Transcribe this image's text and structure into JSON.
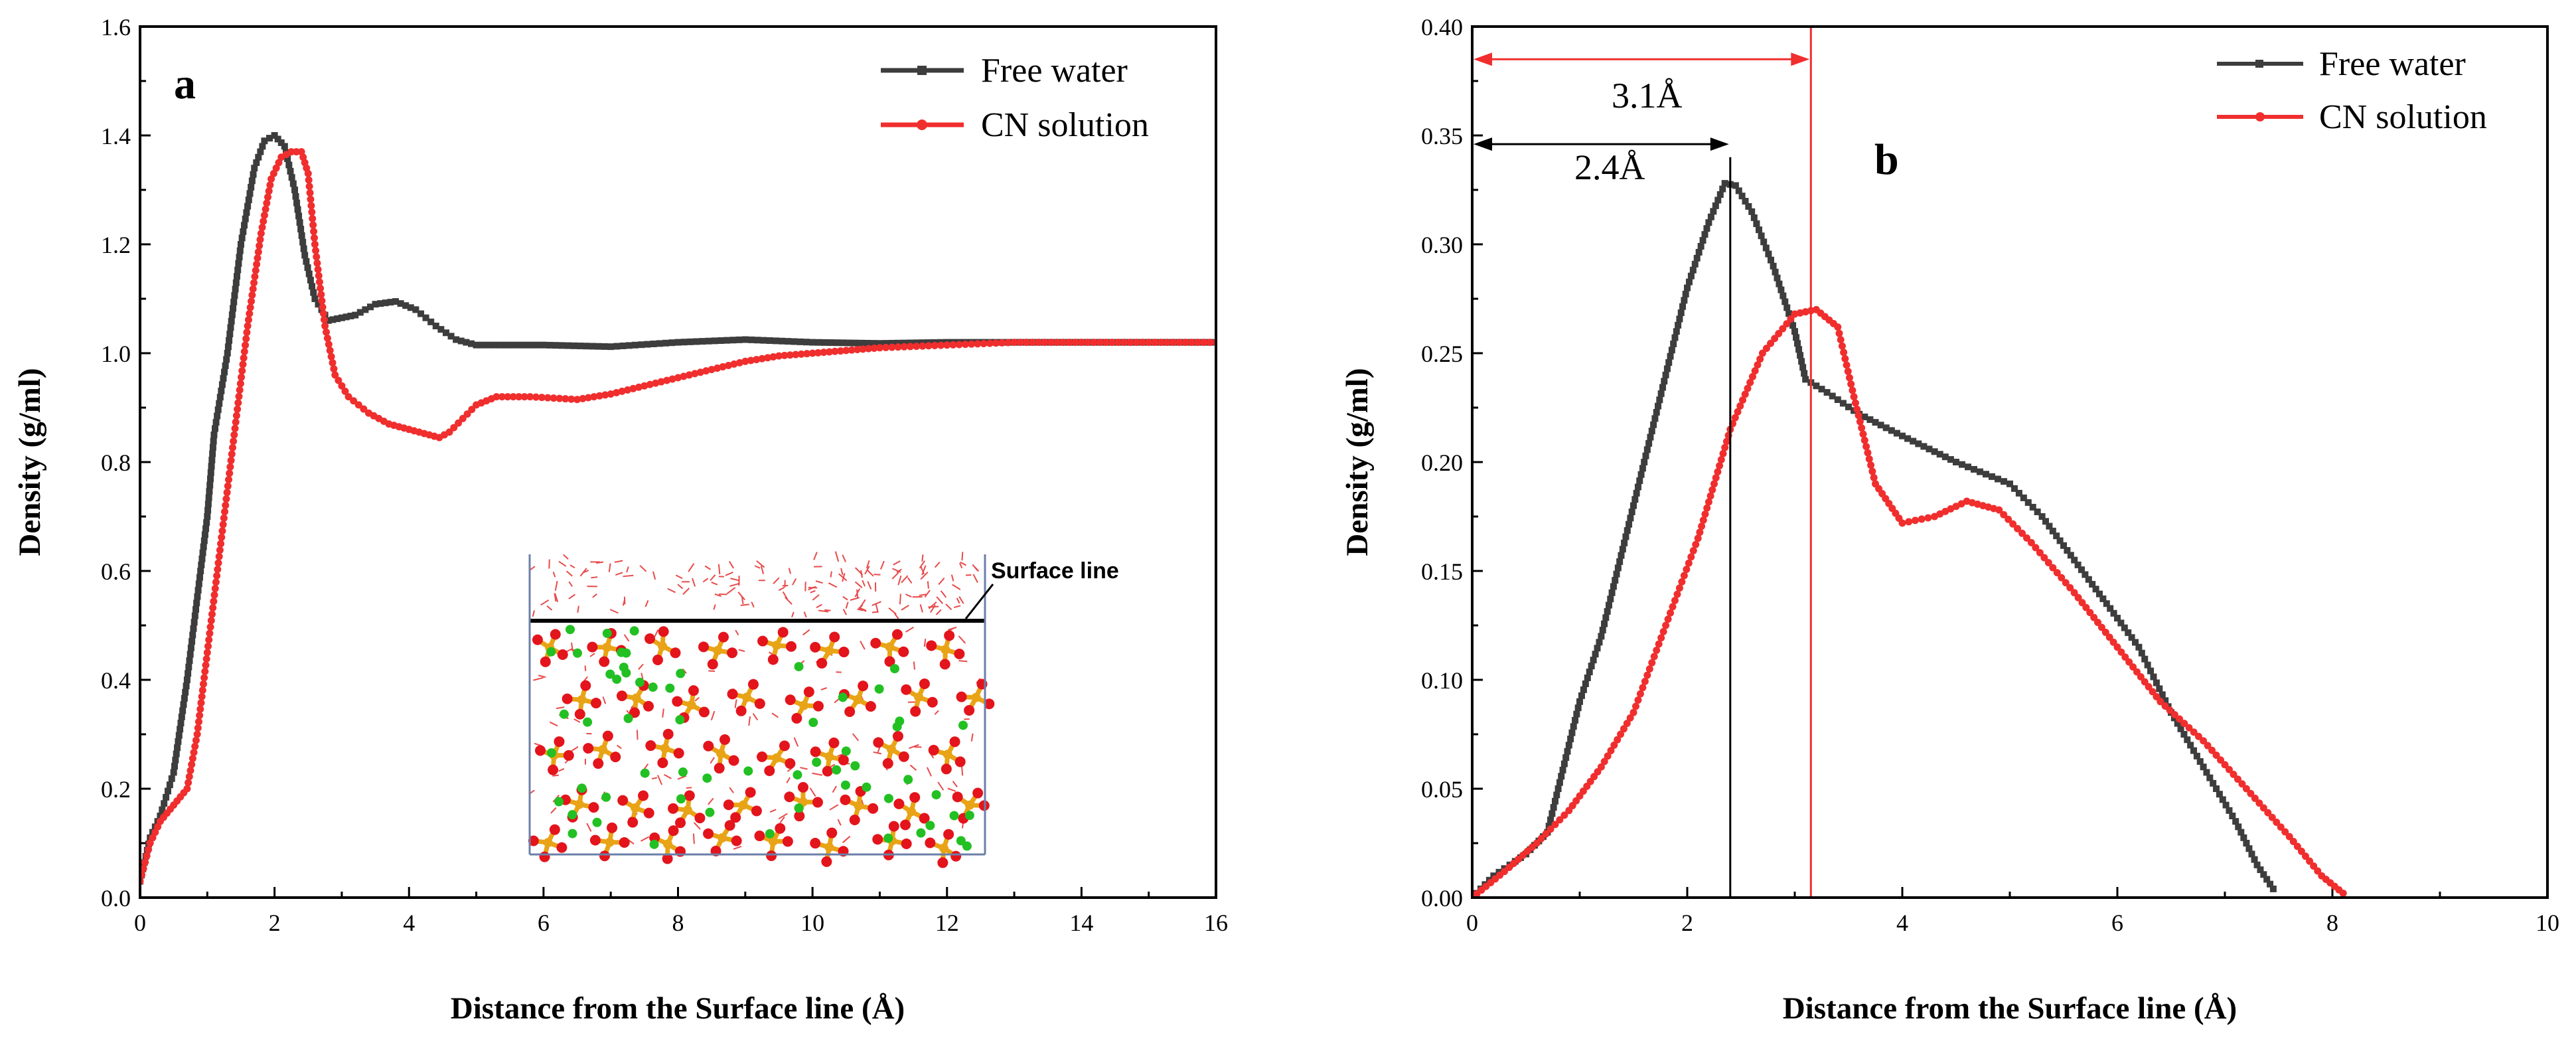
{
  "chart_data": [
    {
      "panel": "a",
      "type": "line",
      "xlabel": "Distance from the Surface line (Å)",
      "ylabel": "Density (g/ml)",
      "xlim": [
        0,
        16
      ],
      "ylim": [
        0,
        1.6
      ],
      "xticks": [
        "0",
        "2",
        "4",
        "6",
        "8",
        "10",
        "12",
        "14",
        "16"
      ],
      "yticks": [
        "0.0",
        "0.2",
        "0.4",
        "0.6",
        "0.8",
        "1.0",
        "1.2",
        "1.4",
        "1.6"
      ],
      "legend_position": "top-right",
      "grid": false,
      "series": [
        {
          "name": "Free water",
          "color": "#3d3d3d",
          "marker": "square",
          "points": [
            [
              0,
              0.03
            ],
            [
              0.15,
              0.11
            ],
            [
              0.3,
              0.15
            ],
            [
              0.5,
              0.23
            ],
            [
              0.7,
              0.4
            ],
            [
              0.9,
              0.6
            ],
            [
              1.0,
              0.7
            ],
            [
              1.1,
              0.85
            ],
            [
              1.3,
              1.0
            ],
            [
              1.5,
              1.2
            ],
            [
              1.7,
              1.34
            ],
            [
              1.85,
              1.39
            ],
            [
              2.0,
              1.4
            ],
            [
              2.15,
              1.38
            ],
            [
              2.3,
              1.3
            ],
            [
              2.45,
              1.18
            ],
            [
              2.6,
              1.1
            ],
            [
              2.8,
              1.06
            ],
            [
              3.0,
              1.065
            ],
            [
              3.2,
              1.07
            ],
            [
              3.5,
              1.09
            ],
            [
              3.8,
              1.095
            ],
            [
              4.1,
              1.08
            ],
            [
              4.4,
              1.05
            ],
            [
              4.7,
              1.025
            ],
            [
              5.0,
              1.015
            ],
            [
              6.0,
              1.015
            ],
            [
              7.0,
              1.012
            ],
            [
              8.0,
              1.02
            ],
            [
              9.0,
              1.025
            ],
            [
              10.0,
              1.02
            ],
            [
              11.0,
              1.018
            ],
            [
              12.0,
              1.02
            ],
            [
              13.0,
              1.02
            ],
            [
              14.0,
              1.02
            ],
            [
              15.0,
              1.02
            ],
            [
              16.0,
              1.02
            ]
          ]
        },
        {
          "name": "CN solution",
          "color": "#f02e2e",
          "marker": "circle",
          "points": [
            [
              0,
              0.03
            ],
            [
              0.15,
              0.1
            ],
            [
              0.3,
              0.14
            ],
            [
              0.5,
              0.17
            ],
            [
              0.7,
              0.2
            ],
            [
              0.85,
              0.3
            ],
            [
              1.0,
              0.45
            ],
            [
              1.2,
              0.65
            ],
            [
              1.4,
              0.85
            ],
            [
              1.6,
              1.05
            ],
            [
              1.8,
              1.22
            ],
            [
              1.95,
              1.32
            ],
            [
              2.1,
              1.36
            ],
            [
              2.25,
              1.37
            ],
            [
              2.4,
              1.37
            ],
            [
              2.5,
              1.33
            ],
            [
              2.6,
              1.2
            ],
            [
              2.75,
              1.05
            ],
            [
              2.9,
              0.96
            ],
            [
              3.1,
              0.92
            ],
            [
              3.4,
              0.89
            ],
            [
              3.7,
              0.87
            ],
            [
              4.0,
              0.86
            ],
            [
              4.3,
              0.85
            ],
            [
              4.45,
              0.845
            ],
            [
              4.6,
              0.855
            ],
            [
              4.8,
              0.88
            ],
            [
              5.0,
              0.905
            ],
            [
              5.3,
              0.92
            ],
            [
              5.8,
              0.92
            ],
            [
              6.5,
              0.915
            ],
            [
              7.0,
              0.925
            ],
            [
              7.5,
              0.94
            ],
            [
              8.0,
              0.955
            ],
            [
              8.5,
              0.97
            ],
            [
              9.0,
              0.985
            ],
            [
              9.5,
              0.995
            ],
            [
              10.0,
              1.0
            ],
            [
              10.5,
              1.005
            ],
            [
              11.0,
              1.01
            ],
            [
              12.0,
              1.015
            ],
            [
              13.0,
              1.02
            ],
            [
              14.0,
              1.02
            ],
            [
              15.0,
              1.02
            ],
            [
              16.0,
              1.02
            ]
          ]
        }
      ],
      "inset": {
        "annotation": "Surface line",
        "description_colors": {
          "oxygen": "#e3141c",
          "phosphorus": "#e8a416",
          "chloride": "#22c022",
          "water": "#e84a4a"
        }
      }
    },
    {
      "panel": "b",
      "type": "line",
      "xlabel": "Distance from the Surface line (Å)",
      "ylabel": "Density (g/ml)",
      "xlim": [
        0,
        10
      ],
      "ylim": [
        0,
        0.4
      ],
      "xticks": [
        "0",
        "2",
        "4",
        "6",
        "8",
        "10"
      ],
      "yticks": [
        "0.00",
        "0.05",
        "0.10",
        "0.15",
        "0.20",
        "0.25",
        "0.30",
        "0.35",
        "0.40"
      ],
      "legend_position": "top-right",
      "grid": false,
      "annotations": [
        {
          "label": "2.4Å",
          "x_value": 2.4,
          "arrow_y": 0.346,
          "color": "#000000"
        },
        {
          "label": "3.1Å",
          "x_value": 3.15,
          "arrow_y": 0.385,
          "color": "#f02e2e"
        }
      ],
      "series": [
        {
          "name": "Free water",
          "color": "#3d3d3d",
          "marker": "square",
          "points": [
            [
              0,
              0.0
            ],
            [
              0.2,
              0.01
            ],
            [
              0.5,
              0.02
            ],
            [
              0.7,
              0.03
            ],
            [
              0.8,
              0.05
            ],
            [
              1.0,
              0.09
            ],
            [
              1.2,
              0.12
            ],
            [
              1.4,
              0.16
            ],
            [
              1.6,
              0.2
            ],
            [
              1.8,
              0.24
            ],
            [
              2.0,
              0.28
            ],
            [
              2.2,
              0.31
            ],
            [
              2.35,
              0.328
            ],
            [
              2.45,
              0.327
            ],
            [
              2.6,
              0.315
            ],
            [
              2.8,
              0.29
            ],
            [
              3.0,
              0.26
            ],
            [
              3.1,
              0.238
            ],
            [
              3.3,
              0.232
            ],
            [
              3.6,
              0.222
            ],
            [
              4.0,
              0.212
            ],
            [
              4.5,
              0.2
            ],
            [
              5.0,
              0.19
            ],
            [
              5.3,
              0.175
            ],
            [
              5.6,
              0.155
            ],
            [
              5.9,
              0.135
            ],
            [
              6.2,
              0.115
            ],
            [
              6.5,
              0.085
            ],
            [
              6.8,
              0.06
            ],
            [
              7.1,
              0.035
            ],
            [
              7.3,
              0.015
            ],
            [
              7.45,
              0.004
            ]
          ]
        },
        {
          "name": "CN solution",
          "color": "#f02e2e",
          "marker": "circle",
          "points": [
            [
              0,
              0.0
            ],
            [
              0.3,
              0.012
            ],
            [
              0.6,
              0.025
            ],
            [
              0.9,
              0.04
            ],
            [
              1.2,
              0.06
            ],
            [
              1.5,
              0.085
            ],
            [
              1.8,
              0.125
            ],
            [
              2.1,
              0.165
            ],
            [
              2.4,
              0.215
            ],
            [
              2.7,
              0.25
            ],
            [
              3.0,
              0.268
            ],
            [
              3.2,
              0.27
            ],
            [
              3.4,
              0.262
            ],
            [
              3.55,
              0.23
            ],
            [
              3.75,
              0.19
            ],
            [
              4.0,
              0.172
            ],
            [
              4.3,
              0.175
            ],
            [
              4.6,
              0.182
            ],
            [
              4.9,
              0.178
            ],
            [
              5.2,
              0.163
            ],
            [
              5.6,
              0.14
            ],
            [
              6.0,
              0.115
            ],
            [
              6.4,
              0.09
            ],
            [
              6.8,
              0.072
            ],
            [
              7.2,
              0.05
            ],
            [
              7.6,
              0.028
            ],
            [
              7.9,
              0.01
            ],
            [
              8.1,
              0.002
            ]
          ]
        }
      ]
    }
  ],
  "panel_labels": [
    "a",
    "b"
  ]
}
